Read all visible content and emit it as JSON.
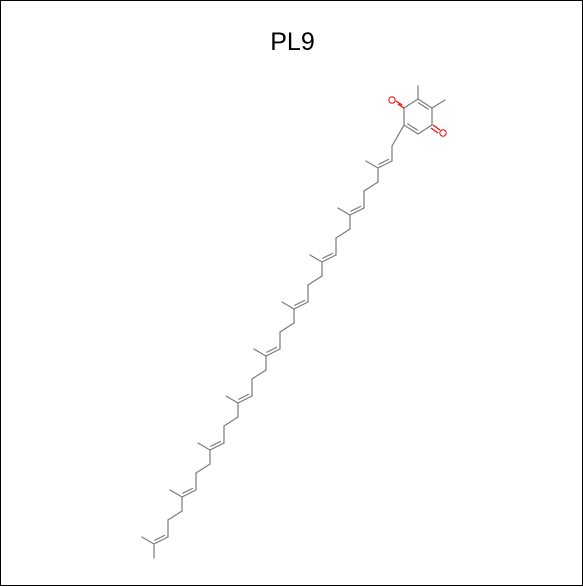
{
  "title": "PL9",
  "colors": {
    "bond": "#7a7a7a",
    "oxygen": "#ff0000",
    "border": "#000000",
    "background": "#ffffff"
  },
  "atoms": {
    "oxygen_symbol": "O"
  }
}
